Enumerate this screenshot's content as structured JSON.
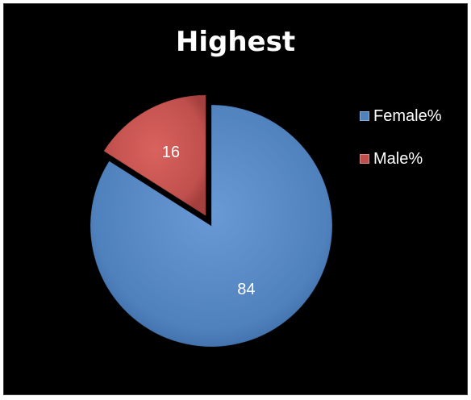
{
  "chart_data": {
    "type": "pie",
    "title": "Highest",
    "categories": [
      "Female%",
      "Male%"
    ],
    "values": [
      84,
      16
    ],
    "colors": [
      "#4f81bd",
      "#c0504d"
    ],
    "exploded": [
      "Male%"
    ],
    "data_labels": [
      "84",
      "16"
    ],
    "legend_placement": "right",
    "background": "#000000",
    "label_color": "#ffffff"
  }
}
